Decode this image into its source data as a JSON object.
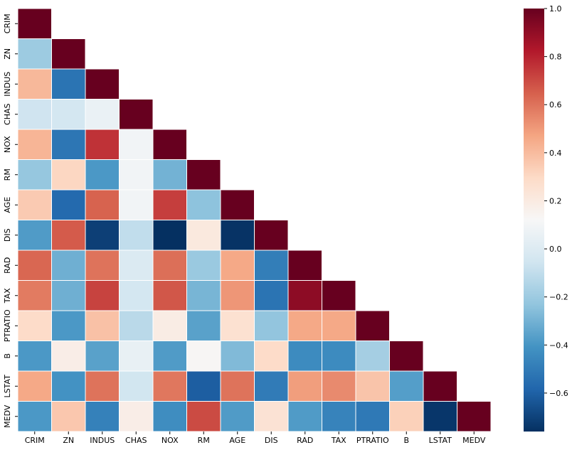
{
  "chart_data": {
    "type": "heatmap",
    "title": "",
    "xlabel": "",
    "ylabel": "",
    "mask": "upper-triangle",
    "labels": [
      "CRIM",
      "ZN",
      "INDUS",
      "CHAS",
      "NOX",
      "RM",
      "AGE",
      "DIS",
      "RAD",
      "TAX",
      "PTRATIO",
      "B",
      "LSTAT",
      "MEDV"
    ],
    "matrix": [
      [
        1.0
      ],
      [
        -0.2,
        1.0
      ],
      [
        0.41,
        -0.53,
        1.0
      ],
      [
        -0.06,
        -0.04,
        0.06,
        1.0
      ],
      [
        0.42,
        -0.52,
        0.76,
        0.09,
        1.0
      ],
      [
        -0.22,
        0.31,
        -0.39,
        0.09,
        -0.3,
        1.0
      ],
      [
        0.35,
        -0.57,
        0.64,
        0.09,
        0.73,
        -0.24,
        1.0
      ],
      [
        -0.38,
        0.66,
        -0.71,
        -0.1,
        -0.77,
        0.21,
        -0.75,
        1.0
      ],
      [
        0.63,
        -0.31,
        0.6,
        -0.01,
        0.61,
        -0.21,
        0.46,
        -0.49,
        1.0
      ],
      [
        0.58,
        -0.31,
        0.72,
        -0.04,
        0.67,
        -0.29,
        0.51,
        -0.53,
        0.91,
        1.0
      ],
      [
        0.29,
        -0.39,
        0.38,
        -0.12,
        0.19,
        -0.36,
        0.26,
        -0.23,
        0.46,
        0.46,
        1.0
      ],
      [
        -0.39,
        0.18,
        -0.36,
        0.05,
        -0.38,
        0.13,
        -0.27,
        0.29,
        -0.44,
        -0.44,
        -0.18,
        1.0
      ],
      [
        0.46,
        -0.41,
        0.6,
        -0.05,
        0.59,
        -0.61,
        0.6,
        -0.5,
        0.49,
        0.54,
        0.37,
        -0.37,
        1.0
      ],
      [
        -0.39,
        0.36,
        -0.48,
        0.18,
        -0.43,
        0.7,
        -0.38,
        0.25,
        -0.38,
        -0.47,
        -0.51,
        0.33,
        -0.74,
        1.0
      ]
    ],
    "colorbar": {
      "vmin": -0.76,
      "vmax": 1.0,
      "colormap": "RdBu_r",
      "ticks": [
        1.0,
        0.8,
        0.6,
        0.4,
        0.2,
        0.0,
        -0.2,
        -0.4,
        -0.6
      ],
      "tick_labels": [
        "1.0",
        "0.8",
        "0.6",
        "0.4",
        "0.2",
        "0.0",
        "−0.2",
        "−0.4",
        "−0.6"
      ]
    },
    "cell_border_color": "#ffffff"
  }
}
